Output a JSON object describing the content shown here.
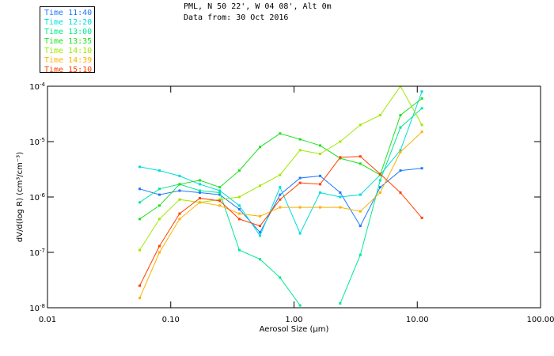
{
  "title_line1": "PML, N 50 22', W 04 08', Alt 0m",
  "title_line2": "Data from: 30 Oct 2016",
  "chart_data": {
    "type": "line",
    "xscale": "log",
    "yscale": "log",
    "xlabel": "Aerosol Size (µm)",
    "ylabel": "dV/d(log R) (cm³/cm⁻³)",
    "xlim": [
      0.01,
      100
    ],
    "ylim": [
      1e-08,
      0.0001
    ],
    "xticks": [
      {
        "v": 0.01,
        "label": "0.01"
      },
      {
        "v": 0.1,
        "label": "0.10"
      },
      {
        "v": 1,
        "label": "1.00"
      },
      {
        "v": 10,
        "label": "10.00"
      },
      {
        "v": 100,
        "label": "100.00"
      }
    ],
    "yticks": [
      {
        "v": 0.0001,
        "base": "10",
        "exp": "-4"
      },
      {
        "v": 1e-05,
        "base": "10",
        "exp": "-5"
      },
      {
        "v": 1e-06,
        "base": "10",
        "exp": "-6"
      },
      {
        "v": 1e-07,
        "base": "10",
        "exp": "-7"
      },
      {
        "v": 1e-08,
        "base": "10",
        "exp": "-8"
      }
    ],
    "legend_position": "top-left-outside",
    "x": [
      0.056,
      0.081,
      0.118,
      0.172,
      0.25,
      0.36,
      0.53,
      0.77,
      1.12,
      1.63,
      2.37,
      3.45,
      5.0,
      7.3,
      10.9
    ],
    "series": [
      {
        "name": "Time 11:40",
        "color": "#1e78ff",
        "values": [
          1.4e-06,
          1.1e-06,
          1.3e-06,
          1.2e-06,
          1.1e-06,
          6e-07,
          2.3e-07,
          1.1e-06,
          2.2e-06,
          2.4e-06,
          1.2e-06,
          3e-07,
          1.5e-06,
          3e-06,
          3.3e-06
        ]
      },
      {
        "name": "Time 12:20",
        "color": "#00dcdc",
        "values": [
          3.5e-06,
          3e-06,
          2.4e-06,
          1.7e-06,
          1.3e-06,
          7e-07,
          2e-07,
          1.5e-06,
          2.2e-07,
          1.2e-06,
          1e-06,
          1.1e-06,
          2.5e-06,
          7e-06,
          8e-05
        ]
      },
      {
        "name": "Time 13:00",
        "color": "#00e890",
        "values": [
          8e-07,
          1.4e-06,
          1.7e-06,
          1.3e-06,
          1.2e-06,
          1.1e-07,
          7.5e-08,
          3.5e-08,
          1.1e-08,
          null,
          1.2e-08,
          9e-08,
          2e-06,
          1.8e-05,
          4e-05
        ]
      },
      {
        "name": "Time 13:35",
        "color": "#20e020",
        "values": [
          4e-07,
          7e-07,
          1.7e-06,
          2e-06,
          1.5e-06,
          3e-06,
          8e-06,
          1.4e-05,
          1.1e-05,
          8.5e-06,
          5e-06,
          4e-06,
          2.5e-06,
          3e-05,
          6e-05
        ]
      },
      {
        "name": "Time 14:10",
        "color": "#a0e800",
        "values": [
          1.1e-07,
          4e-07,
          9e-07,
          8e-07,
          9e-07,
          1e-06,
          1.6e-06,
          2.5e-06,
          7e-06,
          6e-06,
          1e-05,
          2e-05,
          3e-05,
          0.0001,
          2e-05
        ]
      },
      {
        "name": "Time 14:39",
        "color": "#ffb000",
        "values": [
          1.5e-08,
          1e-07,
          4e-07,
          8e-07,
          7e-07,
          5e-07,
          4.5e-07,
          6.5e-07,
          6.5e-07,
          6.5e-07,
          6.5e-07,
          5.5e-07,
          1.2e-06,
          6.5e-06,
          1.5e-05
        ]
      },
      {
        "name": "Time 15:10",
        "color": "#ff4000",
        "values": [
          2.5e-08,
          1.3e-07,
          5e-07,
          9.5e-07,
          8.5e-07,
          4e-07,
          3e-07,
          9e-07,
          1.8e-06,
          1.7e-06,
          5.2e-06,
          5.4e-06,
          2.6e-06,
          1.2e-06,
          4.2e-07
        ]
      }
    ]
  }
}
